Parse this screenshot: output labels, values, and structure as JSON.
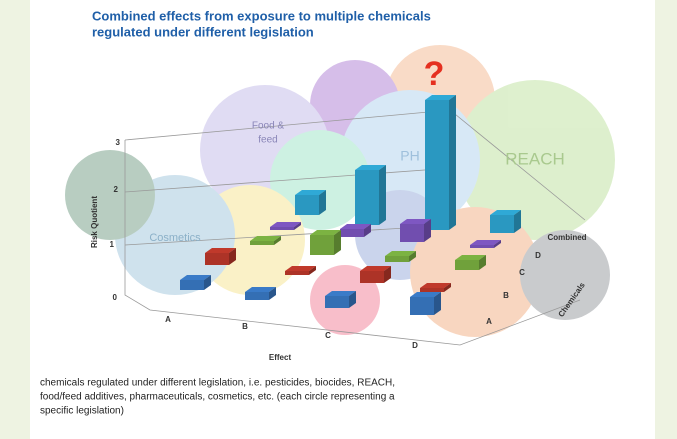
{
  "header": {
    "title": [
      "Combined effects from exposure to multiple chemicals",
      "regulated under different legislation"
    ]
  },
  "diagram": {
    "question_mark": "?",
    "circle_labels": {
      "food_feed": [
        "Food &",
        "feed"
      ],
      "pharma": "PH",
      "reach": "REACH",
      "cosmetics": "Cosmetics"
    },
    "y_axis": {
      "label": "Risk Quotient",
      "ticks": [
        "3",
        "2",
        "1",
        "0"
      ]
    },
    "effect_axis": {
      "label": "Effect",
      "ticks": [
        "A",
        "B",
        "C",
        "D"
      ]
    },
    "chemicals_axis": {
      "label": "Chemicals",
      "ticks": [
        "Combined",
        "D",
        "C",
        "B",
        "A"
      ]
    }
  },
  "caption": [
    "chemicals regulated under different legislation, i.e. pesticides, biocides, REACH,",
    "food/feed additives, pharmaceuticals, cosmetics, etc. (each circle representing a",
    "specific legislation)"
  ]
}
